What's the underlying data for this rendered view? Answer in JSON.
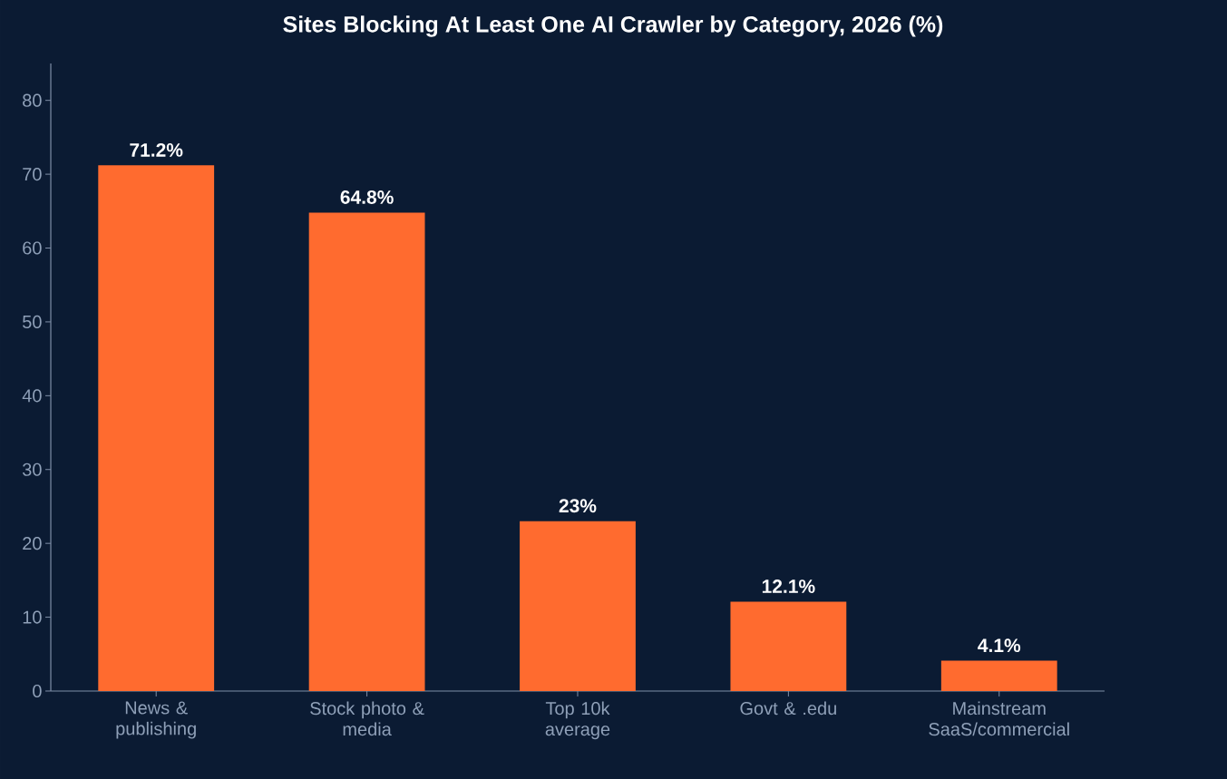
{
  "chart_data": {
    "type": "bar",
    "title": "Sites Blocking At Least One AI Crawler by Category, 2026 (%)",
    "categories": [
      "News & publishing",
      "Stock photo & media",
      "Top 10k average",
      "Govt & .edu",
      "Mainstream SaaS/commercial"
    ],
    "values": [
      71.2,
      64.8,
      23,
      12.1,
      4.1
    ],
    "value_labels": [
      "71.2%",
      "64.8%",
      "23%",
      "12.1%",
      "4.1%"
    ],
    "color": "#ff6b2f",
    "ylim": [
      0,
      85
    ],
    "yticks": [
      0,
      10,
      20,
      30,
      40,
      50,
      60,
      70,
      80
    ],
    "grid": false
  }
}
